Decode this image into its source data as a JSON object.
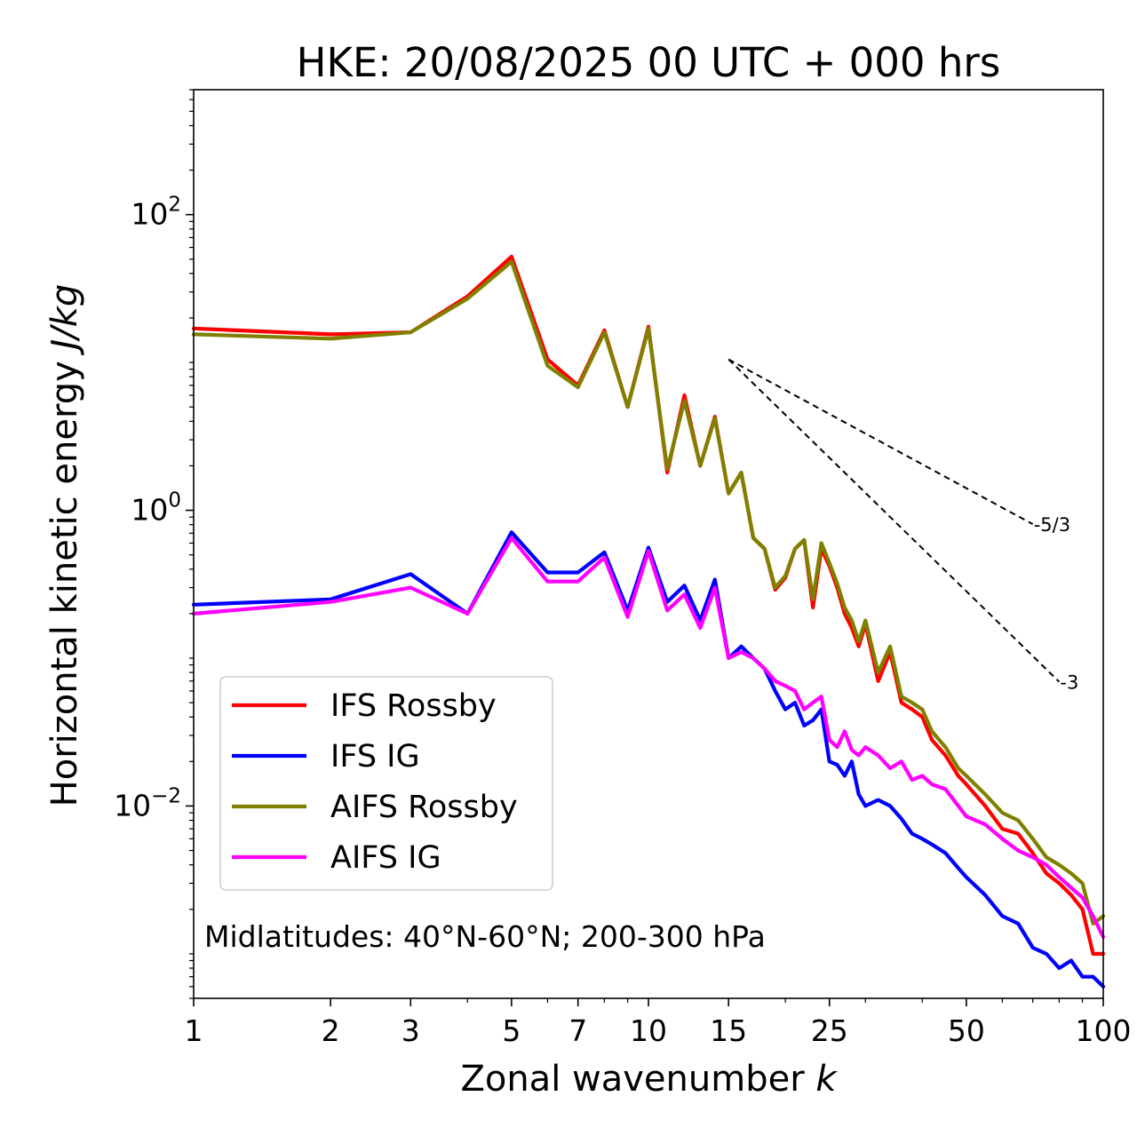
{
  "chart_data": {
    "type": "line",
    "title": "HKE: 20/08/2025 00 UTC + 000 hrs",
    "xlabel_text": "Zonal wavenumber ",
    "xlabel_italic": "k",
    "ylabel_text": "Horizontal kinetic energy ",
    "ylabel_italic": "J/kg",
    "xscale": "log",
    "yscale": "log",
    "xlim": [
      1,
      100
    ],
    "ylim": [
      0.0005,
      700
    ],
    "xticks": [
      {
        "value": 1,
        "label": "1"
      },
      {
        "value": 2,
        "label": "2"
      },
      {
        "value": 3,
        "label": "3"
      },
      {
        "value": 5,
        "label": "5"
      },
      {
        "value": 7,
        "label": "7"
      },
      {
        "value": 10,
        "label": "10"
      },
      {
        "value": 15,
        "label": "15"
      },
      {
        "value": 25,
        "label": "25"
      },
      {
        "value": 50,
        "label": "50"
      },
      {
        "value": 100,
        "label": "100"
      }
    ],
    "yticks": [
      {
        "value": 0.01,
        "base": "10",
        "exp": "−2"
      },
      {
        "value": 1,
        "base": "10",
        "exp": "0"
      },
      {
        "value": 100,
        "base": "10",
        "exp": "2"
      }
    ],
    "annotation": "Midlatitudes: 40°N-60°N; 200-300 hPa",
    "legend_position": "lower-left",
    "reference_lines": [
      {
        "label": "-5/3",
        "slope": -1.6667,
        "x": [
          15,
          70
        ],
        "y0": 10.5
      },
      {
        "label": "-3",
        "slope": -3,
        "x": [
          15,
          80
        ],
        "y0": 10.5
      }
    ],
    "series": [
      {
        "name": "IFS Rossby",
        "color": "#ff0000",
        "x": [
          1,
          2,
          3,
          4,
          5,
          6,
          7,
          8,
          9,
          10,
          11,
          12,
          13,
          14,
          15,
          16,
          17,
          18,
          19,
          20,
          21,
          22,
          23,
          24,
          25,
          26,
          27,
          28,
          29,
          30,
          32,
          34,
          36,
          38,
          40,
          42,
          45,
          48,
          50,
          55,
          60,
          65,
          70,
          75,
          80,
          85,
          90,
          95,
          100
        ],
        "values": [
          17.0,
          15.5,
          16.0,
          28.0,
          52.0,
          10.5,
          7.0,
          16.5,
          5.0,
          17.5,
          1.8,
          6.0,
          2.0,
          4.3,
          1.3,
          1.8,
          0.65,
          0.55,
          0.29,
          0.35,
          0.55,
          0.63,
          0.22,
          0.55,
          0.42,
          0.3,
          0.2,
          0.16,
          0.12,
          0.17,
          0.07,
          0.11,
          0.05,
          0.045,
          0.04,
          0.028,
          0.022,
          0.016,
          0.014,
          0.01,
          0.007,
          0.0065,
          0.0048,
          0.0035,
          0.003,
          0.0025,
          0.002,
          0.001,
          0.001
        ]
      },
      {
        "name": "IFS IG",
        "color": "#0000ff",
        "x": [
          1,
          2,
          3,
          4,
          5,
          6,
          7,
          8,
          9,
          10,
          11,
          12,
          13,
          14,
          15,
          16,
          17,
          18,
          19,
          20,
          21,
          22,
          23,
          24,
          25,
          26,
          27,
          28,
          29,
          30,
          32,
          34,
          36,
          38,
          40,
          42,
          45,
          48,
          50,
          55,
          60,
          65,
          70,
          75,
          80,
          85,
          90,
          95,
          100
        ],
        "values": [
          0.23,
          0.25,
          0.37,
          0.2,
          0.71,
          0.38,
          0.38,
          0.52,
          0.21,
          0.56,
          0.24,
          0.31,
          0.18,
          0.34,
          0.1,
          0.12,
          0.1,
          0.085,
          0.06,
          0.045,
          0.05,
          0.035,
          0.038,
          0.045,
          0.02,
          0.019,
          0.016,
          0.02,
          0.012,
          0.01,
          0.011,
          0.01,
          0.0082,
          0.0065,
          0.006,
          0.0055,
          0.0048,
          0.0038,
          0.0033,
          0.0025,
          0.0018,
          0.0016,
          0.0011,
          0.001,
          0.0008,
          0.0009,
          0.0007,
          0.0007,
          0.0006
        ]
      },
      {
        "name": "AIFS Rossby",
        "color": "#808000",
        "x": [
          1,
          2,
          3,
          4,
          5,
          6,
          7,
          8,
          9,
          10,
          11,
          12,
          13,
          14,
          15,
          16,
          17,
          18,
          19,
          20,
          21,
          22,
          23,
          24,
          25,
          26,
          27,
          28,
          29,
          30,
          32,
          34,
          36,
          38,
          40,
          42,
          45,
          48,
          50,
          55,
          60,
          65,
          70,
          75,
          80,
          85,
          90,
          95,
          100
        ],
        "values": [
          15.5,
          14.5,
          16.0,
          27.0,
          48.0,
          9.5,
          6.8,
          16.0,
          5.0,
          17.0,
          1.9,
          5.5,
          2.0,
          4.2,
          1.3,
          1.8,
          0.65,
          0.55,
          0.3,
          0.36,
          0.55,
          0.63,
          0.25,
          0.6,
          0.44,
          0.32,
          0.22,
          0.18,
          0.13,
          0.18,
          0.08,
          0.12,
          0.055,
          0.05,
          0.045,
          0.032,
          0.025,
          0.018,
          0.016,
          0.012,
          0.009,
          0.008,
          0.006,
          0.0045,
          0.004,
          0.0035,
          0.003,
          0.0016,
          0.0018
        ]
      },
      {
        "name": "AIFS IG",
        "color": "#ff00ff",
        "x": [
          1,
          2,
          3,
          4,
          5,
          6,
          7,
          8,
          9,
          10,
          11,
          12,
          13,
          14,
          15,
          16,
          17,
          18,
          19,
          20,
          21,
          22,
          23,
          24,
          25,
          26,
          27,
          28,
          29,
          30,
          32,
          34,
          36,
          38,
          40,
          42,
          45,
          48,
          50,
          55,
          60,
          65,
          70,
          75,
          80,
          85,
          90,
          95,
          100
        ],
        "values": [
          0.2,
          0.24,
          0.3,
          0.2,
          0.65,
          0.33,
          0.33,
          0.48,
          0.19,
          0.53,
          0.21,
          0.27,
          0.16,
          0.3,
          0.1,
          0.11,
          0.1,
          0.085,
          0.07,
          0.065,
          0.06,
          0.045,
          0.05,
          0.055,
          0.028,
          0.025,
          0.032,
          0.024,
          0.022,
          0.025,
          0.022,
          0.018,
          0.02,
          0.015,
          0.016,
          0.014,
          0.013,
          0.01,
          0.0085,
          0.0075,
          0.006,
          0.005,
          0.0045,
          0.004,
          0.0033,
          0.0028,
          0.0024,
          0.0018,
          0.0013
        ]
      }
    ]
  }
}
